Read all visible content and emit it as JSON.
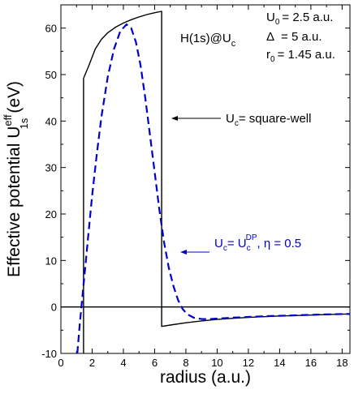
{
  "chart_data": {
    "type": "line",
    "title": "",
    "xlabel": "radius (a.u.)",
    "ylabel_main": "Effective potential  U",
    "ylabel_sup": "eff",
    "ylabel_sub": "1s",
    "ylabel_unit": "(eV)",
    "xlim": [
      0,
      18.5
    ],
    "ylim": [
      -10,
      65
    ],
    "x_ticks": [
      "0",
      "2",
      "4",
      "6",
      "8",
      "10",
      "12",
      "14",
      "16",
      "18"
    ],
    "x_tick_values": [
      0,
      2,
      4,
      6,
      8,
      10,
      12,
      14,
      16,
      18
    ],
    "y_ticks": [
      "-10",
      "0",
      "10",
      "20",
      "30",
      "40",
      "50",
      "60"
    ],
    "y_tick_values": [
      -10,
      0,
      10,
      20,
      30,
      40,
      50,
      60
    ],
    "zero_line": true,
    "series": [
      {
        "color": "#000000",
        "style": "solid",
        "x": [
          1.45,
          1.45,
          1.8,
          2.2,
          2.6,
          3.0,
          3.5,
          4.0,
          4.5,
          5.0,
          5.5,
          6.0,
          6.45,
          6.45,
          6.45,
          7.0,
          8.0,
          9.0,
          10.0,
          11.0,
          12.0,
          13.0,
          14.0,
          15.0,
          16.0,
          17.0,
          18.5
        ],
        "y": [
          -10,
          49.2,
          52.0,
          55.5,
          57.6,
          59.0,
          60.2,
          61.1,
          61.8,
          62.4,
          62.9,
          63.3,
          63.6,
          0,
          -4.2,
          -3.9,
          -3.4,
          -3.0,
          -2.7,
          -2.45,
          -2.25,
          -2.1,
          -1.95,
          -1.85,
          -1.75,
          -1.65,
          -1.5
        ]
      },
      {
        "color": "#0000cc",
        "style": "dashed",
        "x": [
          1.05,
          1.2,
          1.4,
          1.6,
          1.8,
          2.0,
          2.3,
          2.6,
          3.0,
          3.4,
          3.8,
          4.2,
          4.5,
          4.8,
          5.1,
          5.4,
          5.7,
          6.0,
          6.3,
          6.6,
          6.9,
          7.2,
          7.5,
          7.8,
          8.1,
          8.5,
          9.0,
          9.5,
          10.0,
          11.0,
          12.0,
          13.0,
          14.0,
          15.0,
          16.0,
          17.0,
          18.5
        ],
        "y": [
          -10,
          -4.0,
          3.0,
          10.0,
          17.0,
          24.0,
          33.0,
          41.0,
          49.5,
          55.5,
          59.3,
          60.8,
          60.0,
          57.0,
          52.0,
          45.0,
          37.0,
          29.0,
          21.0,
          14.0,
          8.5,
          4.5,
          1.5,
          -0.5,
          -1.6,
          -2.3,
          -2.6,
          -2.6,
          -2.5,
          -2.3,
          -2.15,
          -2.0,
          -1.9,
          -1.8,
          -1.7,
          -1.6,
          -1.5
        ]
      }
    ],
    "annotations": {
      "system_label": "H(1s)@U",
      "system_sub": "c",
      "params": [
        {
          "sym": "U",
          "sub": "0",
          "rest": "=  2.5 a.u."
        },
        {
          "sym": "Δ",
          "sub": "",
          "rest": "=  5 a.u."
        },
        {
          "sym": "r",
          "sub": "0",
          "rest": "= 1.45 a.u."
        }
      ],
      "square_well": {
        "a": "U",
        "a_sub": "c",
        "rest": "= square-well"
      },
      "dp": {
        "a": "U",
        "a_sub": "c",
        "eq": "= U",
        "b_sub": "c",
        "b_sup": "DP",
        "rest": ", η = 0.5"
      }
    }
  }
}
